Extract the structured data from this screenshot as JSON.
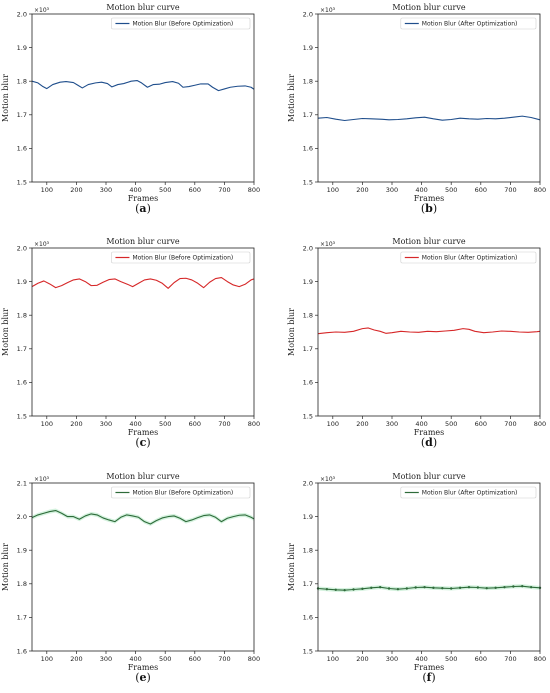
{
  "chart_data": [
    {
      "type": "line",
      "caption": "(a)",
      "title": "Motion blur curve",
      "xlabel": "Frames",
      "ylabel": "Motion blur",
      "y_multiplier": "×10³",
      "xlim": [
        50,
        800
      ],
      "ylim": [
        1.5,
        2.0
      ],
      "xticks": [
        "100",
        "200",
        "300",
        "400",
        "500",
        "600",
        "700",
        "800"
      ],
      "yticks": [
        "1.5",
        "1.6",
        "1.7",
        "1.8",
        "1.9",
        "2.0"
      ],
      "color": "#1f4e8c",
      "legend_position": "top-right",
      "series": [
        {
          "name": "Motion Blur (Before Optimization)",
          "x": [
            50,
            70,
            85,
            100,
            120,
            145,
            165,
            190,
            205,
            220,
            240,
            265,
            285,
            305,
            320,
            340,
            360,
            385,
            405,
            420,
            440,
            460,
            480,
            500,
            525,
            545,
            560,
            580,
            600,
            620,
            645,
            660,
            680,
            700,
            720,
            745,
            770,
            790,
            800
          ],
          "values": [
            1.8,
            1.795,
            1.785,
            1.778,
            1.79,
            1.797,
            1.799,
            1.796,
            1.788,
            1.78,
            1.79,
            1.795,
            1.797,
            1.793,
            1.783,
            1.79,
            1.793,
            1.8,
            1.802,
            1.795,
            1.782,
            1.79,
            1.791,
            1.796,
            1.799,
            1.794,
            1.782,
            1.784,
            1.788,
            1.792,
            1.792,
            1.782,
            1.772,
            1.777,
            1.782,
            1.785,
            1.786,
            1.782,
            1.776
          ]
        }
      ]
    },
    {
      "type": "line",
      "caption": "(b)",
      "title": "Motion blur curve",
      "xlabel": "Frames",
      "ylabel": "Motion blur",
      "y_multiplier": "×10³",
      "xlim": [
        50,
        800
      ],
      "ylim": [
        1.5,
        2.0
      ],
      "xticks": [
        "100",
        "200",
        "300",
        "400",
        "500",
        "600",
        "700",
        "800"
      ],
      "yticks": [
        "1.5",
        "1.6",
        "1.7",
        "1.8",
        "1.9",
        "2.0"
      ],
      "color": "#1f4e8c",
      "legend_position": "top-right",
      "series": [
        {
          "name": "Motion Blur (After Optimization)",
          "x": [
            50,
            80,
            110,
            140,
            170,
            200,
            230,
            260,
            290,
            320,
            350,
            380,
            410,
            440,
            470,
            500,
            530,
            560,
            590,
            620,
            650,
            680,
            710,
            740,
            770,
            800
          ],
          "values": [
            1.69,
            1.692,
            1.687,
            1.683,
            1.686,
            1.689,
            1.688,
            1.687,
            1.685,
            1.686,
            1.688,
            1.691,
            1.693,
            1.688,
            1.684,
            1.686,
            1.69,
            1.688,
            1.687,
            1.689,
            1.688,
            1.69,
            1.693,
            1.696,
            1.692,
            1.685
          ]
        }
      ]
    },
    {
      "type": "line",
      "caption": "(c)",
      "title": "Motion blur curve",
      "xlabel": "Frames",
      "ylabel": "Motion blur",
      "y_multiplier": "×10³",
      "xlim": [
        50,
        800
      ],
      "ylim": [
        1.5,
        2.0
      ],
      "xticks": [
        "100",
        "200",
        "300",
        "400",
        "500",
        "600",
        "700",
        "800"
      ],
      "yticks": [
        "1.5",
        "1.6",
        "1.7",
        "1.8",
        "1.9",
        "2.0"
      ],
      "color": "#d62728",
      "legend_position": "top-right",
      "series": [
        {
          "name": "Motion Blur (Before Optimization)",
          "x": [
            50,
            70,
            90,
            110,
            130,
            150,
            170,
            190,
            210,
            230,
            250,
            270,
            290,
            310,
            330,
            350,
            370,
            390,
            410,
            430,
            450,
            470,
            490,
            510,
            530,
            550,
            570,
            590,
            610,
            630,
            650,
            670,
            690,
            710,
            730,
            750,
            770,
            790,
            800
          ],
          "values": [
            1.885,
            1.895,
            1.902,
            1.893,
            1.882,
            1.888,
            1.897,
            1.905,
            1.908,
            1.9,
            1.888,
            1.889,
            1.898,
            1.906,
            1.908,
            1.9,
            1.893,
            1.885,
            1.895,
            1.905,
            1.908,
            1.904,
            1.895,
            1.88,
            1.897,
            1.909,
            1.91,
            1.905,
            1.895,
            1.882,
            1.898,
            1.909,
            1.912,
            1.9,
            1.89,
            1.885,
            1.892,
            1.905,
            1.908
          ]
        }
      ]
    },
    {
      "type": "line",
      "caption": "(d)",
      "title": "Motion blur curve",
      "xlabel": "Frames",
      "ylabel": "Motion blur",
      "y_multiplier": "×10³",
      "xlim": [
        50,
        800
      ],
      "ylim": [
        1.5,
        2.0
      ],
      "xticks": [
        "100",
        "200",
        "300",
        "400",
        "500",
        "600",
        "700",
        "800"
      ],
      "yticks": [
        "1.5",
        "1.6",
        "1.7",
        "1.8",
        "1.9",
        "2.0"
      ],
      "color": "#d62728",
      "legend_position": "top-right",
      "series": [
        {
          "name": "Motion Blur (After Optimization)",
          "x": [
            50,
            80,
            110,
            140,
            170,
            200,
            220,
            240,
            260,
            280,
            300,
            330,
            360,
            390,
            420,
            450,
            480,
            510,
            540,
            560,
            580,
            610,
            640,
            670,
            700,
            730,
            760,
            790,
            800
          ],
          "values": [
            1.745,
            1.748,
            1.75,
            1.749,
            1.752,
            1.76,
            1.762,
            1.756,
            1.752,
            1.746,
            1.748,
            1.752,
            1.75,
            1.749,
            1.752,
            1.751,
            1.753,
            1.755,
            1.76,
            1.758,
            1.752,
            1.748,
            1.75,
            1.753,
            1.752,
            1.75,
            1.749,
            1.751,
            1.752
          ]
        }
      ]
    },
    {
      "type": "line",
      "caption": "(e)",
      "title": "Motion blur curve",
      "xlabel": "Frames",
      "ylabel": "Motion blur",
      "y_multiplier": "×10³",
      "xlim": [
        50,
        800
      ],
      "ylim": [
        1.6,
        2.1
      ],
      "xticks": [
        "100",
        "200",
        "300",
        "400",
        "500",
        "600",
        "700",
        "800"
      ],
      "yticks": [
        "1.6",
        "1.7",
        "1.8",
        "1.9",
        "2.0",
        "2.1"
      ],
      "color": "#2e6b3a",
      "legend_position": "top-right",
      "series": [
        {
          "name": "Motion Blur (Before Optimization)",
          "x": [
            50,
            70,
            90,
            110,
            130,
            150,
            170,
            190,
            210,
            230,
            250,
            270,
            290,
            310,
            330,
            350,
            370,
            390,
            410,
            430,
            450,
            470,
            490,
            510,
            530,
            550,
            570,
            590,
            610,
            630,
            650,
            670,
            690,
            710,
            730,
            750,
            770,
            790,
            800
          ],
          "values": [
            1.997,
            2.005,
            2.01,
            2.015,
            2.018,
            2.01,
            2.0,
            2.0,
            1.992,
            2.002,
            2.008,
            2.005,
            1.996,
            1.99,
            1.985,
            1.998,
            2.005,
            2.002,
            1.998,
            1.985,
            1.978,
            1.988,
            1.996,
            2.0,
            2.002,
            1.995,
            1.985,
            1.99,
            1.997,
            2.003,
            2.005,
            1.998,
            1.985,
            1.995,
            2.0,
            2.004,
            2.005,
            1.998,
            1.993
          ]
        }
      ]
    },
    {
      "type": "line",
      "caption": "(f)",
      "title": "Motion blur curve",
      "xlabel": "Frames",
      "ylabel": "Motion blur",
      "y_multiplier": "×10³",
      "xlim": [
        50,
        800
      ],
      "ylim": [
        1.5,
        2.0
      ],
      "xticks": [
        "100",
        "200",
        "300",
        "400",
        "500",
        "600",
        "700",
        "800"
      ],
      "yticks": [
        "1.5",
        "1.6",
        "1.7",
        "1.8",
        "1.9",
        "2.0"
      ],
      "color": "#2e6b3a",
      "legend_position": "top-right",
      "series": [
        {
          "name": "Motion Blur (After Optimization)",
          "x": [
            50,
            80,
            110,
            140,
            170,
            200,
            230,
            260,
            290,
            320,
            350,
            380,
            410,
            440,
            470,
            500,
            530,
            560,
            590,
            620,
            650,
            680,
            710,
            740,
            770,
            800
          ],
          "values": [
            1.686,
            1.684,
            1.682,
            1.681,
            1.683,
            1.685,
            1.688,
            1.69,
            1.686,
            1.684,
            1.686,
            1.689,
            1.69,
            1.688,
            1.687,
            1.686,
            1.688,
            1.69,
            1.689,
            1.687,
            1.688,
            1.69,
            1.692,
            1.693,
            1.69,
            1.688
          ]
        }
      ]
    }
  ]
}
